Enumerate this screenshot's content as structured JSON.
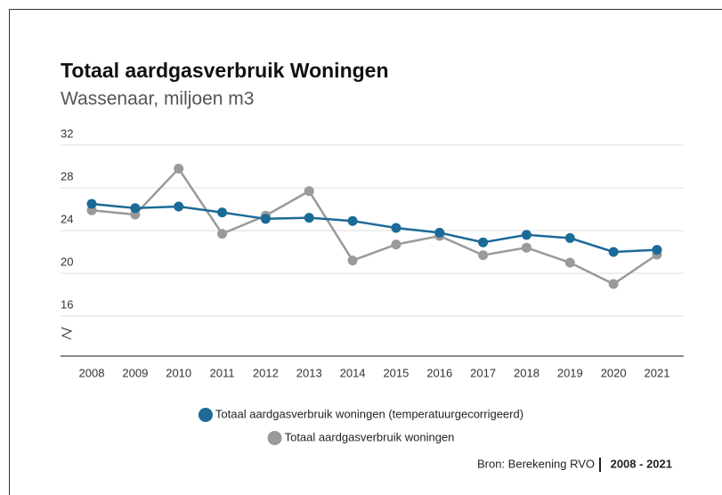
{
  "chart_data": {
    "type": "line",
    "title": "Totaal aardgasverbruik Woningen",
    "subtitle": "Wassenaar, miljoen m3",
    "x": [
      2008,
      2009,
      2010,
      2011,
      2012,
      2013,
      2014,
      2015,
      2016,
      2017,
      2018,
      2019,
      2020,
      2021
    ],
    "xticks": [
      2008,
      2009,
      2010,
      2011,
      2012,
      2013,
      2014,
      2015,
      2016,
      2017,
      2018,
      2019,
      2020,
      2021
    ],
    "xlim": [
      2008,
      2021
    ],
    "series": [
      {
        "name": "Totaal aardgasverbruik woningen (temperatuurgecorrigeerd)",
        "color": "#1c6a98",
        "values": [
          26.5,
          26.1,
          26.25,
          25.7,
          25.1,
          25.2,
          24.9,
          24.25,
          23.8,
          22.9,
          23.6,
          23.3,
          22.0,
          22.2
        ]
      },
      {
        "name": "Totaal aardgasverbruik woningen",
        "color": "#9a9a9a",
        "values": [
          25.9,
          25.5,
          29.8,
          23.7,
          25.4,
          27.7,
          21.2,
          22.7,
          23.5,
          21.7,
          22.4,
          21.0,
          19.0,
          21.75
        ]
      }
    ],
    "ylim": [
      12.25,
      32
    ],
    "yticks": [
      16,
      20,
      24,
      28,
      32
    ],
    "grid": true,
    "source": "Bron: Berekening RVO",
    "period": "2008 - 2021"
  }
}
